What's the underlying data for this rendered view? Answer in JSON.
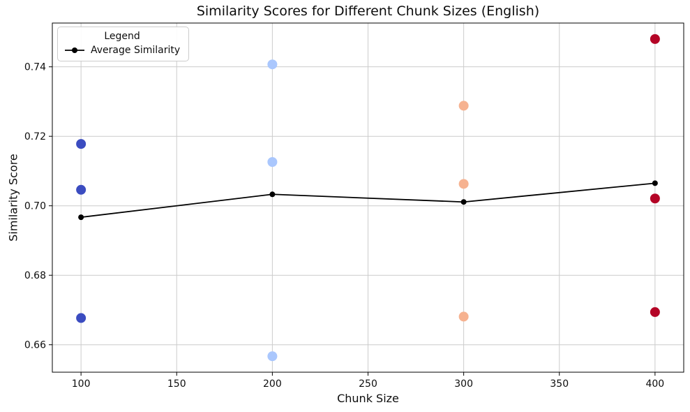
{
  "figure": {
    "background": "#ffffff"
  },
  "chart_data": {
    "type": "scatter",
    "title": "Similarity Scores for Different Chunk Sizes (English)",
    "xlabel": "Chunk Size",
    "ylabel": "Similarity Score",
    "xlim": [
      85,
      415
    ],
    "ylim": [
      0.6521,
      0.7526
    ],
    "x_ticks": [
      100,
      150,
      200,
      250,
      300,
      350,
      400
    ],
    "y_ticks": [
      0.66,
      0.68,
      0.7,
      0.72,
      0.74
    ],
    "y_tick_labels": [
      "0.66",
      "0.68",
      "0.70",
      "0.72",
      "0.74"
    ],
    "grid": true,
    "grid_color": "#cccccc",
    "spine_color": "#000000",
    "tick_label_color": "#0d0d0d",
    "legend": {
      "title": "Legend",
      "position": "upper-left",
      "entries": [
        {
          "label": "Average Similarity",
          "color": "#000000",
          "marker": "line-circle"
        }
      ]
    },
    "scatter_groups": [
      {
        "chunk_size": 100,
        "color": "#3b4cc0",
        "values": [
          0.7178,
          0.7046,
          0.6677
        ]
      },
      {
        "chunk_size": 200,
        "color": "#aac7fd",
        "values": [
          0.7407,
          0.7126,
          0.6567
        ]
      },
      {
        "chunk_size": 300,
        "color": "#f6b290",
        "values": [
          0.7288,
          0.7063,
          0.6681
        ]
      },
      {
        "chunk_size": 400,
        "color": "#b40426",
        "values": [
          0.748,
          0.7021,
          0.6694
        ]
      }
    ],
    "average_series": {
      "name": "Average Similarity",
      "color": "#000000",
      "x": [
        100,
        200,
        300,
        400
      ],
      "y": [
        0.6967,
        0.7033,
        0.7011,
        0.7065
      ]
    }
  }
}
